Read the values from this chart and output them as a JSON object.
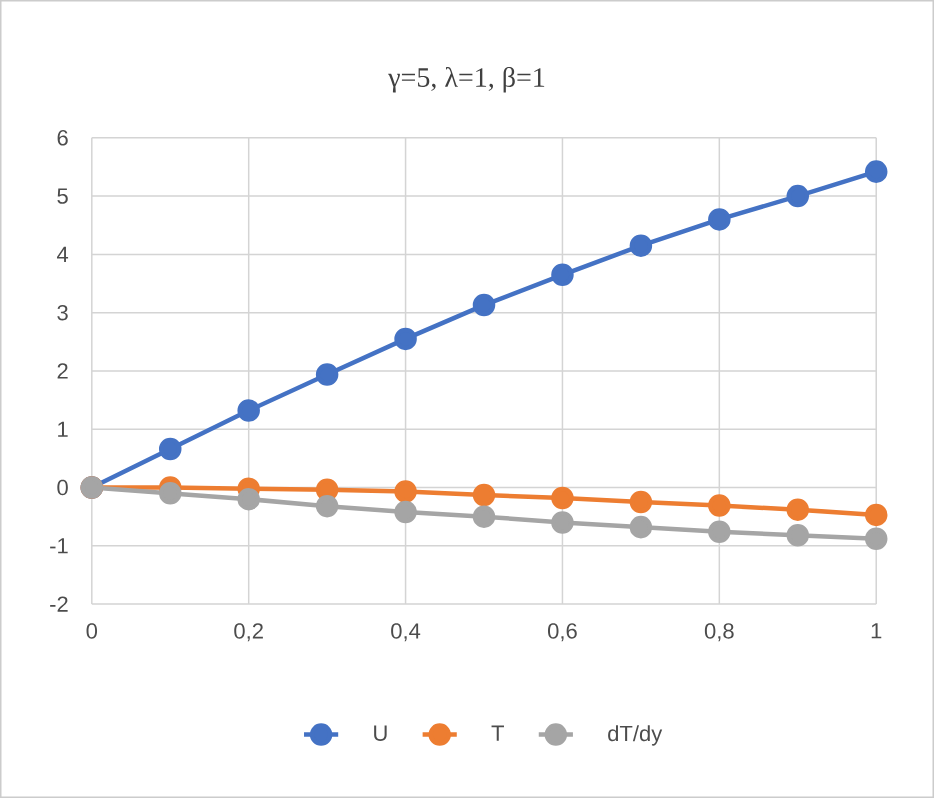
{
  "chart_data": {
    "type": "line",
    "title": "γ=5, λ=1, β=1",
    "x": [
      0,
      0.1,
      0.2,
      0.3,
      0.4,
      0.5,
      0.6,
      0.7,
      0.8,
      0.9,
      1
    ],
    "series": [
      {
        "name": "U",
        "color": "#4472c4",
        "values": [
          0,
          0.66,
          1.32,
          1.94,
          2.55,
          3.13,
          3.65,
          4.15,
          4.6,
          5.0,
          5.42
        ]
      },
      {
        "name": "T",
        "color": "#ed7d31",
        "values": [
          0,
          0.0,
          -0.02,
          -0.04,
          -0.07,
          -0.13,
          -0.18,
          -0.25,
          -0.31,
          -0.38,
          -0.47
        ]
      },
      {
        "name": "dT/dy",
        "color": "#a5a5a5",
        "values": [
          0,
          -0.1,
          -0.2,
          -0.32,
          -0.42,
          -0.5,
          -0.6,
          -0.68,
          -0.76,
          -0.82,
          -0.88
        ]
      }
    ],
    "xlim": [
      0,
      1
    ],
    "xticks": [
      0,
      {
        "value": 0.2,
        "label": "0,2"
      },
      {
        "value": 0.4,
        "label": "0,4"
      },
      {
        "value": 0.6,
        "label": "0,6"
      },
      {
        "value": 0.8,
        "label": "0,8"
      },
      1
    ],
    "ylim": [
      -2,
      6
    ],
    "yticks": [
      -2,
      -1,
      0,
      1,
      2,
      3,
      4,
      5,
      6
    ],
    "grid": true,
    "legend": "bottom",
    "marker": "circle",
    "line_style": "solid"
  }
}
